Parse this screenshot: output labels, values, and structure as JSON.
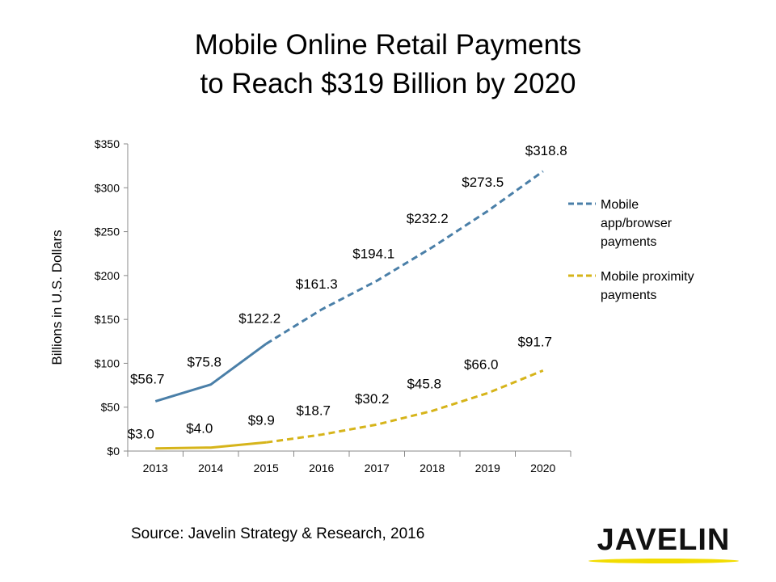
{
  "title_lines": [
    "Mobile Online Retail Payments",
    "to Reach $319 Billion by 2020"
  ],
  "source": "Source: Javelin Strategy & Research, 2016",
  "logo_text": "JAVELIN",
  "colors": {
    "app_browser": "#4a7fa8",
    "proximity": "#d6b41a",
    "logo_bar": "#f2dc00",
    "axis": "#888888"
  },
  "chart_data": {
    "type": "line",
    "categories": [
      "2013",
      "2014",
      "2015",
      "2016",
      "2017",
      "2018",
      "2019",
      "2020"
    ],
    "ylabel": "Billions in U.S. Dollars",
    "ylim": [
      0,
      350
    ],
    "yticks": [
      0,
      50,
      100,
      150,
      200,
      250,
      300,
      350
    ],
    "ytick_labels": [
      "$0",
      "$50",
      "$100",
      "$150",
      "$200",
      "$250",
      "$300",
      "$350"
    ],
    "grid": false,
    "legend_position": "right",
    "series": [
      {
        "name": "Mobile app/browser payments",
        "legend_lines": [
          "Mobile",
          "app/browser",
          "payments"
        ],
        "values": [
          56.7,
          75.8,
          122.2,
          161.3,
          194.1,
          232.2,
          273.5,
          318.8
        ],
        "labels": [
          "$56.7",
          "$75.8",
          "$122.2",
          "$161.3",
          "$194.1",
          "$232.2",
          "$273.5",
          "$318.8"
        ],
        "solid_through": "2015",
        "dashed_from": "2015",
        "color": "#4a7fa8"
      },
      {
        "name": "Mobile proximity payments",
        "legend_lines": [
          "Mobile proximity",
          "payments"
        ],
        "values": [
          3.0,
          4.0,
          9.9,
          18.7,
          30.2,
          45.8,
          66.0,
          91.7
        ],
        "labels": [
          "$3.0",
          "$4.0",
          "$9.9",
          "$18.7",
          "$30.2",
          "$45.8",
          "$66.0",
          "$91.7"
        ],
        "solid_through": "2015",
        "dashed_from": "2015",
        "color": "#d6b41a"
      }
    ]
  }
}
